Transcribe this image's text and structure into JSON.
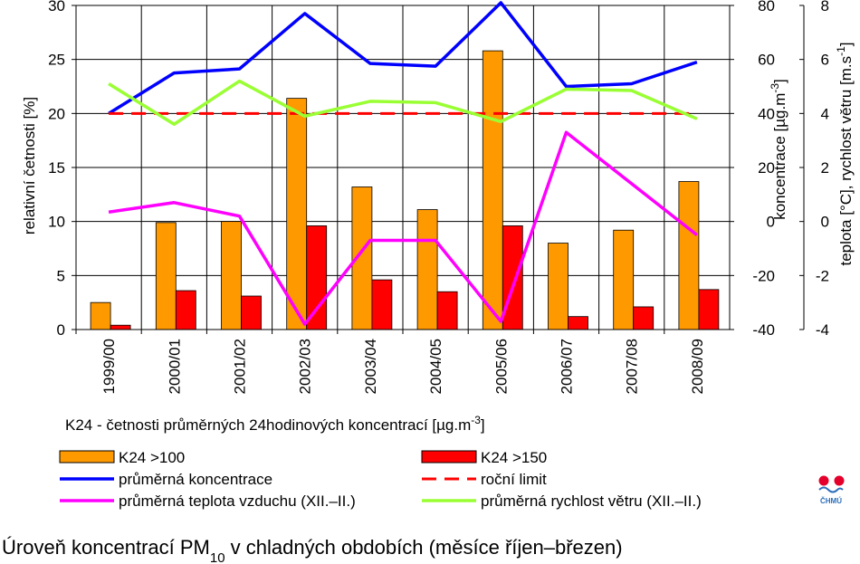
{
  "chart_data": {
    "type": "bar",
    "categories": [
      "1999/00",
      "2000/01",
      "2001/02",
      "2002/03",
      "2003/04",
      "2004/05",
      "2005/06",
      "2006/07",
      "2007/08",
      "2008/09"
    ],
    "left_axis": {
      "label": "relativní četnosti [%]",
      "ylim": [
        0,
        30
      ],
      "ticks": [
        "0",
        "5",
        "10",
        "15",
        "20",
        "25",
        "30"
      ]
    },
    "right_axis_1": {
      "label_main": "koncentrace [µg.m",
      "label_sup": "-3",
      "label_end": "]",
      "ylim": [
        -40,
        80
      ],
      "ticks": [
        "-40",
        "-20",
        "0",
        "20",
        "40",
        "60",
        "80"
      ]
    },
    "right_axis_2": {
      "label_main": "teplota [°C], rychlost větru [m.s",
      "label_sup": "-1",
      "label_end": "]",
      "ylim": [
        -4,
        8
      ],
      "ticks": [
        "-4",
        "-2",
        "0",
        "2",
        "4",
        "6",
        "8"
      ]
    },
    "series": [
      {
        "name": "K24 >100",
        "kind": "bar",
        "axis": "left",
        "color": "#ff9900",
        "values": [
          2.5,
          9.9,
          10.0,
          21.4,
          13.2,
          11.1,
          25.8,
          8.0,
          9.2,
          13.7
        ]
      },
      {
        "name": "K24 >150",
        "kind": "bar",
        "axis": "left",
        "color": "#ff0000",
        "values": [
          0.4,
          3.6,
          3.1,
          9.6,
          4.6,
          3.5,
          9.6,
          1.2,
          2.1,
          3.7
        ]
      },
      {
        "name": "průměrná koncentrace",
        "kind": "line",
        "axis": "right1",
        "color": "#0000ff",
        "values": [
          40,
          55,
          56.5,
          77,
          58.5,
          57.5,
          81,
          50,
          51,
          59
        ]
      },
      {
        "name": "roční limit",
        "kind": "line",
        "dashed": true,
        "axis": "right1",
        "color": "#ff0000",
        "values": [
          40,
          40,
          40,
          40,
          40,
          40,
          40,
          40,
          40,
          40
        ]
      },
      {
        "name": "průměrná teplota vzduchu (XII.–II.)",
        "kind": "line",
        "axis": "right2",
        "color": "#ff00ff",
        "values": [
          0.35,
          0.7,
          0.2,
          -3.8,
          -0.7,
          -0.7,
          -3.7,
          3.3,
          1.4,
          -0.5
        ]
      },
      {
        "name": "průměrná rychlost větru (XII.–II.)",
        "kind": "line",
        "axis": "right2",
        "color": "#99ff33",
        "values": [
          5.1,
          3.6,
          5.2,
          3.9,
          4.45,
          4.4,
          3.7,
          4.9,
          4.85,
          3.8
        ]
      }
    ],
    "note_main": "K24 - četnosti průměrných 24hodinových koncentrací [µg.m",
    "note_sup": "-3",
    "note_end": "]"
  },
  "caption": {
    "main": "Úroveň koncentrací PM",
    "sub": "10",
    "rest": " v chladných obdobích (měsíce říjen–březen)"
  },
  "logo": {
    "text": "ČHMÚ",
    "colors": [
      "#e4002b",
      "#2a6ebb"
    ]
  }
}
